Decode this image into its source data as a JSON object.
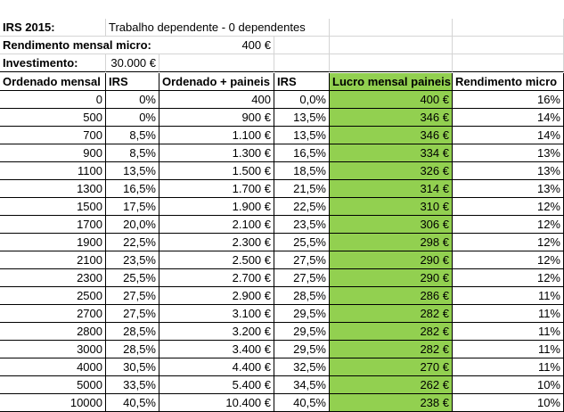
{
  "info": {
    "irs_label": "IRS 2015:",
    "irs_value": "Trabalho dependente - 0 dependentes",
    "rendimento_label": "Rendimento mensal micro:",
    "rendimento_value": "400 €",
    "investimento_label": "Investimento:",
    "investimento_value": "30.000 €"
  },
  "table": {
    "headers": [
      "Ordenado mensal",
      "IRS",
      "Ordenado + paineis",
      "IRS",
      "Lucro mensal paineis",
      "Rendimento micro"
    ],
    "rows": [
      [
        "0",
        "0%",
        "400",
        "0,0%",
        "400 €",
        "16%"
      ],
      [
        "500",
        "0%",
        "900 €",
        "13,5%",
        "346 €",
        "14%"
      ],
      [
        "700",
        "8,5%",
        "1.100 €",
        "13,5%",
        "346 €",
        "14%"
      ],
      [
        "900",
        "8,5%",
        "1.300 €",
        "16,5%",
        "334 €",
        "13%"
      ],
      [
        "1100",
        "13,5%",
        "1.500 €",
        "18,5%",
        "326 €",
        "13%"
      ],
      [
        "1300",
        "16,5%",
        "1.700 €",
        "21,5%",
        "314 €",
        "13%"
      ],
      [
        "1500",
        "17,5%",
        "1.900 €",
        "22,5%",
        "310 €",
        "12%"
      ],
      [
        "1700",
        "20,0%",
        "2.100 €",
        "23,5%",
        "306 €",
        "12%"
      ],
      [
        "1900",
        "22,5%",
        "2.300 €",
        "25,5%",
        "298 €",
        "12%"
      ],
      [
        "2100",
        "23,5%",
        "2.500 €",
        "27,5%",
        "290 €",
        "12%"
      ],
      [
        "2300",
        "25,5%",
        "2.700 €",
        "27,5%",
        "290 €",
        "12%"
      ],
      [
        "2500",
        "27,5%",
        "2.900 €",
        "28,5%",
        "286 €",
        "11%"
      ],
      [
        "2700",
        "27,5%",
        "3.100 €",
        "29,5%",
        "282 €",
        "11%"
      ],
      [
        "2800",
        "28,5%",
        "3.200 €",
        "29,5%",
        "282 €",
        "11%"
      ],
      [
        "3000",
        "28,5%",
        "3.400 €",
        "29,5%",
        "282 €",
        "11%"
      ],
      [
        "4000",
        "30,5%",
        "4.400 €",
        "32,5%",
        "270 €",
        "11%"
      ],
      [
        "5000",
        "33,5%",
        "5.400 €",
        "34,5%",
        "262 €",
        "10%"
      ],
      [
        "10000",
        "40,5%",
        "10.400 €",
        "40,5%",
        "238 €",
        "10%"
      ]
    ]
  },
  "colors": {
    "highlight": "#92d050",
    "gridline": "#d4d4d4",
    "border": "#000000"
  }
}
